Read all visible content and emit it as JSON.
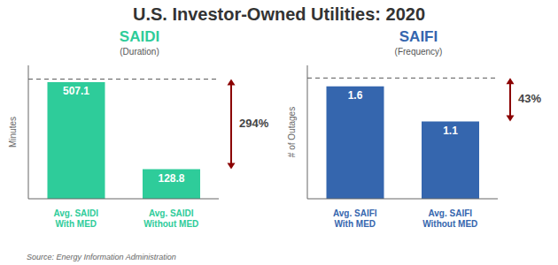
{
  "title": "U.S. Investor-Owned Utilities: 2020",
  "annotations": [
    "Source: Energy Information Administration"
  ],
  "chart_data": [
    {
      "type": "bar",
      "title": "SAIDI",
      "subtitle": "(Duration)",
      "categories": [
        "Avg. SAIDI\nWith MED",
        "Avg. SAIDI\nWithout MED"
      ],
      "values": [
        507.1,
        128.8
      ],
      "color": "#2ECC9A",
      "ylabel": "Minutes",
      "ylim": [
        0,
        580
      ],
      "tick_labels": "x",
      "data_labels": true,
      "reference_line": 520,
      "annotations": [
        {
          "text": "294%",
          "arrow_color": "#8B0000"
        }
      ]
    },
    {
      "type": "bar",
      "title": "SAIFI",
      "subtitle": "(Frequency)",
      "categories": [
        "Avg. SAIFI\nWith MED",
        "Avg. SAIFI\nWithout MED"
      ],
      "values": [
        1.6,
        1.1
      ],
      "color": "#3566AE",
      "ylabel": "# of Outages",
      "ylim": [
        0,
        1.9
      ],
      "tick_labels": "x",
      "data_labels": true,
      "reference_line": 1.72,
      "annotations": [
        {
          "text": "43%",
          "arrow_color": "#8B0000"
        }
      ]
    }
  ]
}
